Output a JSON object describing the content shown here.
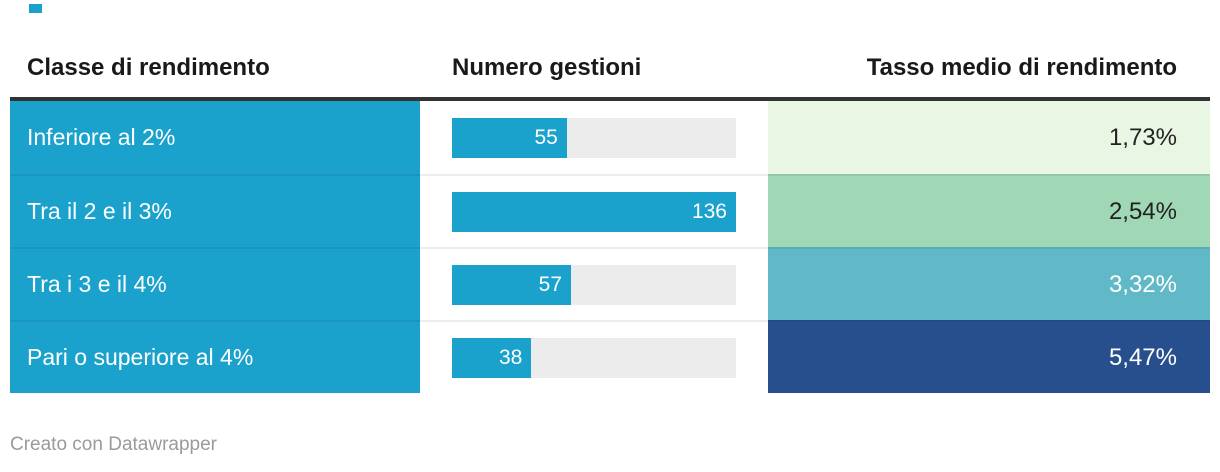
{
  "header": {
    "columns": [
      "Classe di rendimento",
      "Numero gestioni",
      "Tasso medio di rendimento"
    ]
  },
  "table": {
    "rows": [
      {
        "classe": "Inferiore al 2%",
        "numero": 55,
        "tasso": "1,73%",
        "tasso_bg": "#e9f6e3",
        "tasso_text": "#222222"
      },
      {
        "classe": "Tra il 2 e il 3%",
        "numero": 136,
        "tasso": "2,54%",
        "tasso_bg": "#a0d8b5",
        "tasso_text": "#222222"
      },
      {
        "classe": "Tra i 3 e il 4%",
        "numero": 57,
        "tasso": "3,32%",
        "tasso_bg": "#61b8c7",
        "tasso_text": "#ffffff"
      },
      {
        "classe": "Pari o superiore al 4%",
        "numero": 38,
        "tasso": "5,47%",
        "tasso_bg": "#274f8e",
        "tasso_text": "#ffffff"
      }
    ]
  },
  "chart_data": {
    "type": "table",
    "columns": [
      "Classe di rendimento",
      "Numero gestioni",
      "Tasso medio di rendimento"
    ],
    "rows": [
      [
        "Inferiore al 2%",
        55,
        "1,73%"
      ],
      [
        "Tra il 2 e il 3%",
        136,
        "2,54%"
      ],
      [
        "Tra i 3 e il 4%",
        57,
        "3,32%"
      ],
      [
        "Pari o superiore al 4%",
        38,
        "5,47%"
      ]
    ],
    "bar_column": "Numero gestioni",
    "bar_max": 136,
    "tasso_numeric": [
      1.73,
      2.54,
      3.32,
      5.47
    ],
    "legend_position": "none",
    "grid": false
  },
  "footer": {
    "credit": "Creato con Datawrapper"
  },
  "colors": {
    "accent_blue": "#1aa2cd",
    "bar_track": "#ececec",
    "header_rule": "#333333",
    "tasso_scale": [
      "#e9f6e3",
      "#a0d8b5",
      "#61b8c7",
      "#274f8e"
    ]
  }
}
